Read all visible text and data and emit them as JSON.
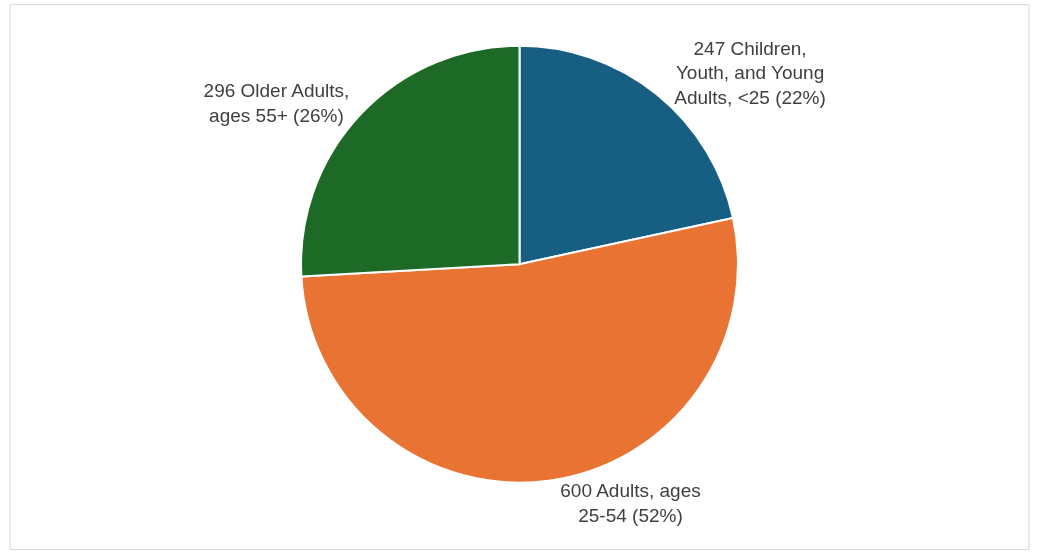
{
  "chart_data": {
    "type": "pie",
    "categories": [
      "247 Children, Youth, and Young Adults, <25 (22%)",
      "600 Adults, ages 25-54 (52%)",
      "296 Older Adults, ages 55+ (26%)"
    ],
    "values": [
      247,
      600,
      296
    ],
    "colors": [
      "#175e83",
      "#e87333",
      "#1c6a26"
    ],
    "legend": false
  }
}
